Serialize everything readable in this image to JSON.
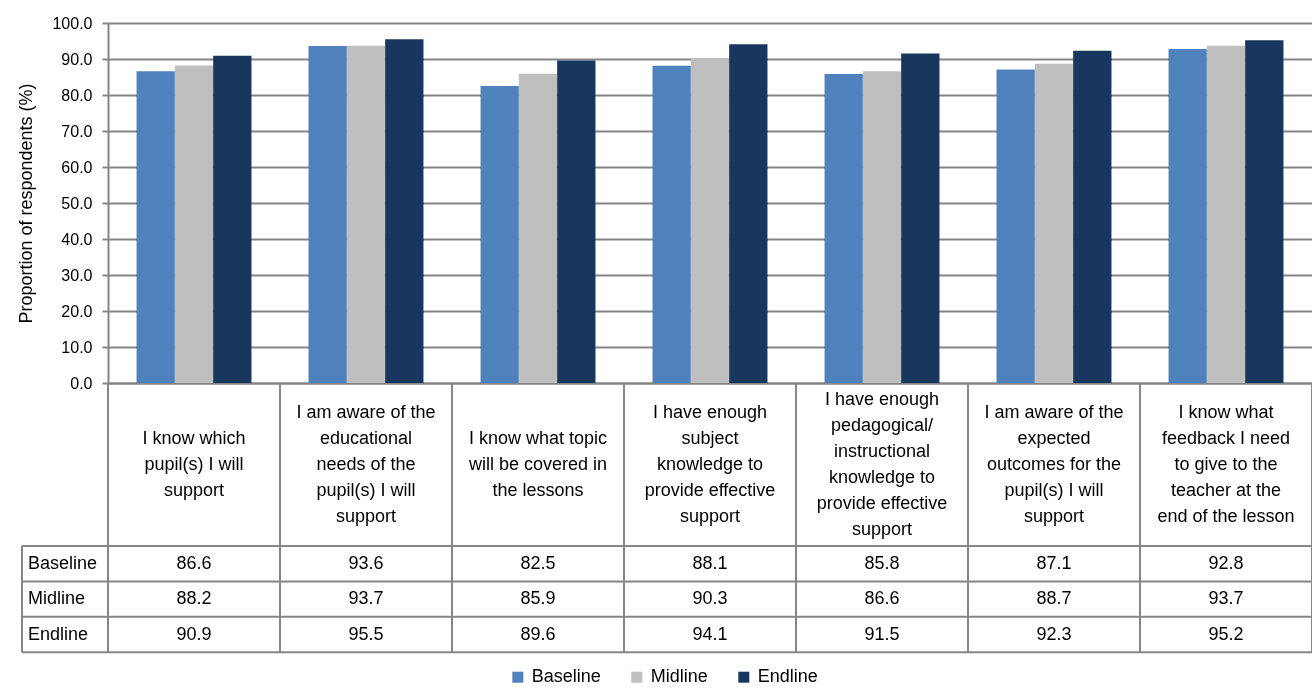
{
  "chart_data": {
    "type": "bar",
    "ylabel": "Proportion of respondents (%)",
    "categories": [
      "I know which\npupil(s) I will\nsupport",
      "I am aware of the\neducational\nneeds of the\npupil(s) I will\nsupport",
      "I know what topic\nwill be covered in\nthe lessons",
      "I have enough\nsubject\nknowledge to\nprovide effective\nsupport",
      "I have enough\npedagogical/\ninstructional\nknowledge to\nprovide effective\nsupport",
      "I am aware of the\nexpected\noutcomes for the\npupil(s) I will\nsupport",
      "I know what\nfeedback I need\nto give to the\nteacher at the\nend of the lesson"
    ],
    "series": [
      {
        "name": "Baseline",
        "color": "#4f81bd",
        "values": [
          86.6,
          93.6,
          82.5,
          88.1,
          85.8,
          87.1,
          92.8
        ]
      },
      {
        "name": "Midline",
        "color": "#bfbfbf",
        "values": [
          88.2,
          93.7,
          85.9,
          90.3,
          86.6,
          88.7,
          93.7
        ]
      },
      {
        "name": "Endline",
        "color": "#17375e",
        "values": [
          90.9,
          95.5,
          89.6,
          94.1,
          91.5,
          92.3,
          95.2
        ]
      }
    ],
    "ylim": [
      0,
      100
    ],
    "yticks": [
      {
        "value": 0,
        "label": "0.0"
      },
      {
        "value": 10,
        "label": "10.0"
      },
      {
        "value": 20,
        "label": "20.0"
      },
      {
        "value": 30,
        "label": "30.0"
      },
      {
        "value": 40,
        "label": "40.0"
      },
      {
        "value": 50,
        "label": "50.0"
      },
      {
        "value": 60,
        "label": "60.0"
      },
      {
        "value": 70,
        "label": "70.0"
      },
      {
        "value": 80,
        "label": "80.0"
      },
      {
        "value": 90,
        "label": "90.0"
      },
      {
        "value": 100,
        "label": "100.0"
      }
    ],
    "grid": "y",
    "legend": "bottom",
    "data_labels": true
  }
}
